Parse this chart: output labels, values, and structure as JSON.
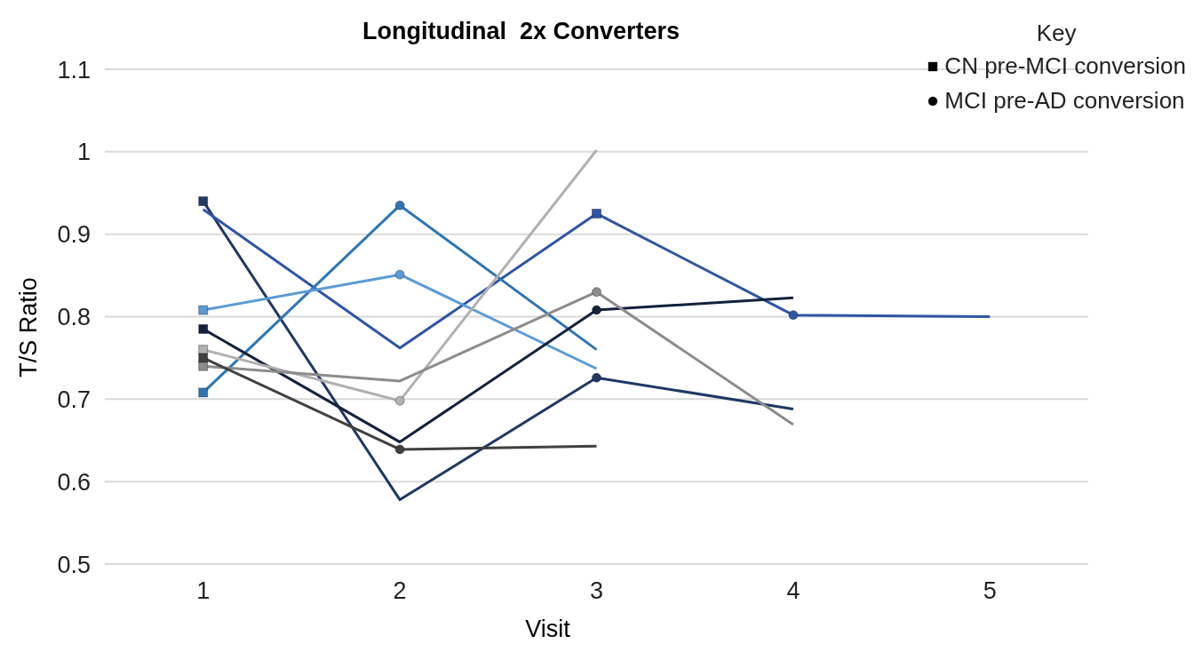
{
  "chart_data": {
    "type": "line",
    "title": "Longitudinal  2x Converters",
    "xlabel": "Visit",
    "ylabel": "T/S Ratio",
    "legend_title": "Key",
    "legend": "top right",
    "grid": "y",
    "marker": "none",
    "line_style": "solid",
    "x": [
      1,
      2,
      3,
      4,
      5
    ],
    "xlim": [
      0.5,
      5.5
    ],
    "xticks": [
      1,
      2,
      3,
      4,
      5
    ],
    "ylim": [
      0.5,
      1.1
    ],
    "yticks": [
      0.5,
      0.6,
      0.7,
      0.8,
      0.9,
      1,
      1.1
    ],
    "series": [
      {
        "color": "#1f3864",
        "values": [
          0.94,
          0.578,
          0.726,
          0.688,
          null
        ]
      },
      {
        "color": "#2f55a4",
        "values": [
          0.93,
          0.762,
          0.925,
          0.802,
          0.8
        ]
      },
      {
        "color": "#2e75b6",
        "values": [
          0.708,
          0.935,
          0.76,
          null,
          null
        ]
      },
      {
        "color": "#5b9bd5",
        "values": [
          0.808,
          0.851,
          0.737,
          null,
          null
        ]
      },
      {
        "color": "#14213d",
        "values": [
          0.785,
          0.648,
          0.808,
          0.823,
          null
        ]
      },
      {
        "color": "#b0b0b0",
        "values": [
          0.76,
          0.698,
          1.002,
          null,
          null
        ]
      },
      {
        "color": "#8c8c8c",
        "values": [
          0.74,
          0.722,
          0.83,
          0.669,
          null
        ]
      },
      {
        "color": "#404040",
        "values": [
          0.75,
          0.639,
          0.643,
          null,
          null
        ]
      },
      {
        "type": "scatter",
        "name": "CN pre-MCI conversion",
        "marker": "square",
        "color": "#000000",
        "x": [
          1,
          1,
          1,
          1,
          1,
          1,
          1,
          3
        ],
        "values": [
          0.94,
          0.708,
          0.808,
          0.785,
          0.76,
          0.74,
          0.75,
          0.925
        ],
        "colors": [
          "#1f3864",
          "#2e75b6",
          "#5b9bd5",
          "#14213d",
          "#b0b0b0",
          "#8c8c8c",
          "#404040",
          "#2f55a4"
        ]
      },
      {
        "type": "scatter",
        "name": "MCI pre-AD conversion",
        "marker": "circle",
        "color": "#000000",
        "x": [
          3,
          4,
          2,
          2,
          3,
          2,
          3,
          2
        ],
        "values": [
          0.726,
          0.802,
          0.935,
          0.851,
          0.808,
          0.698,
          0.83,
          0.639
        ],
        "colors": [
          "#1f3864",
          "#2f55a4",
          "#2e75b6",
          "#5b9bd5",
          "#14213d",
          "#b0b0b0",
          "#8c8c8c",
          "#404040"
        ]
      }
    ]
  }
}
